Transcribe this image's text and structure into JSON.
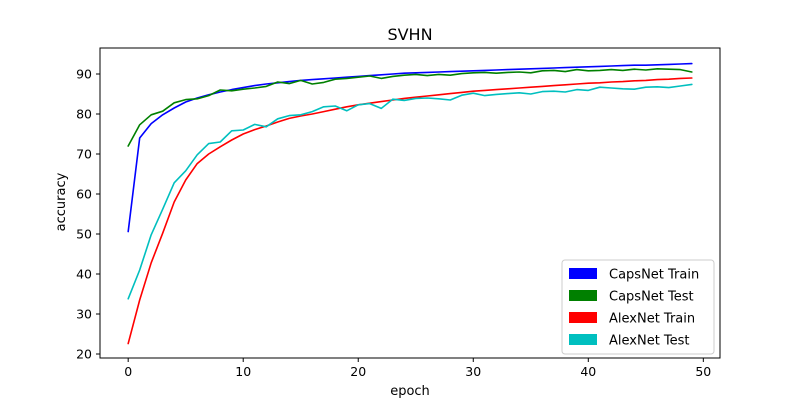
{
  "chart_data": {
    "type": "line",
    "title": "SVHN",
    "xlabel": "epoch",
    "ylabel": "accuracy",
    "xlim": [
      -2.45,
      51.45
    ],
    "ylim": [
      19.0,
      96.5
    ],
    "xticks": [
      0,
      10,
      20,
      30,
      40,
      50
    ],
    "yticks": [
      20,
      30,
      40,
      50,
      60,
      70,
      80,
      90
    ],
    "grid": false,
    "legend_position": "bottom-right",
    "x": [
      0,
      1,
      2,
      3,
      4,
      5,
      6,
      7,
      8,
      9,
      10,
      11,
      12,
      13,
      14,
      15,
      16,
      17,
      18,
      19,
      20,
      21,
      22,
      23,
      24,
      25,
      26,
      27,
      28,
      29,
      30,
      31,
      32,
      33,
      34,
      35,
      36,
      37,
      38,
      39,
      40,
      41,
      42,
      43,
      44,
      45,
      46,
      47,
      48,
      49
    ],
    "series": [
      {
        "name": "CapsNet Train",
        "color": "#0000ff",
        "values": [
          50.6,
          74.0,
          77.6,
          79.8,
          81.5,
          83.0,
          84.0,
          84.8,
          85.5,
          86.1,
          86.6,
          87.1,
          87.5,
          87.8,
          88.1,
          88.4,
          88.6,
          88.8,
          89.0,
          89.2,
          89.4,
          89.6,
          89.8,
          90.0,
          90.2,
          90.3,
          90.4,
          90.5,
          90.6,
          90.7,
          90.8,
          90.9,
          91.0,
          91.1,
          91.2,
          91.3,
          91.4,
          91.5,
          91.6,
          91.7,
          91.8,
          91.9,
          92.0,
          92.1,
          92.2,
          92.2,
          92.3,
          92.4,
          92.5,
          92.6
        ]
      },
      {
        "name": "CapsNet Test",
        "color": "#008000",
        "values": [
          72.0,
          77.3,
          79.8,
          80.7,
          82.8,
          83.6,
          83.8,
          84.6,
          86.0,
          85.8,
          86.2,
          86.5,
          86.9,
          88.0,
          87.6,
          88.4,
          87.5,
          87.9,
          88.7,
          88.9,
          89.2,
          89.5,
          88.9,
          89.4,
          89.7,
          89.9,
          89.6,
          89.9,
          89.7,
          90.1,
          90.3,
          90.4,
          90.2,
          90.4,
          90.5,
          90.3,
          90.8,
          90.9,
          90.6,
          91.1,
          90.8,
          90.9,
          91.1,
          90.9,
          91.2,
          91.0,
          91.3,
          91.2,
          91.1,
          90.5
        ]
      },
      {
        "name": "AlexNet Train",
        "color": "#ff0000",
        "values": [
          22.6,
          33.5,
          42.8,
          50.2,
          58.0,
          63.5,
          67.6,
          70.0,
          71.8,
          73.5,
          75.0,
          76.1,
          77.0,
          78.0,
          78.9,
          79.5,
          80.0,
          80.6,
          81.2,
          81.8,
          82.3,
          82.7,
          83.1,
          83.5,
          83.9,
          84.2,
          84.5,
          84.8,
          85.1,
          85.4,
          85.7,
          85.9,
          86.1,
          86.3,
          86.5,
          86.7,
          86.9,
          87.1,
          87.3,
          87.5,
          87.7,
          87.8,
          88.0,
          88.1,
          88.3,
          88.4,
          88.6,
          88.7,
          88.9,
          89.0
        ]
      },
      {
        "name": "AlexNet Test",
        "color": "#00bfbf",
        "values": [
          33.8,
          41.0,
          49.8,
          56.2,
          62.8,
          65.8,
          69.8,
          72.6,
          73.0,
          75.8,
          76.0,
          77.4,
          76.8,
          78.8,
          79.6,
          79.8,
          80.6,
          81.8,
          82.0,
          80.8,
          82.3,
          82.6,
          81.4,
          83.7,
          83.4,
          83.9,
          84.0,
          83.8,
          83.5,
          84.7,
          85.2,
          84.6,
          84.9,
          85.1,
          85.3,
          85.0,
          85.6,
          85.7,
          85.5,
          86.1,
          85.9,
          86.7,
          86.5,
          86.3,
          86.2,
          86.7,
          86.8,
          86.6,
          87.0,
          87.4
        ]
      }
    ]
  }
}
